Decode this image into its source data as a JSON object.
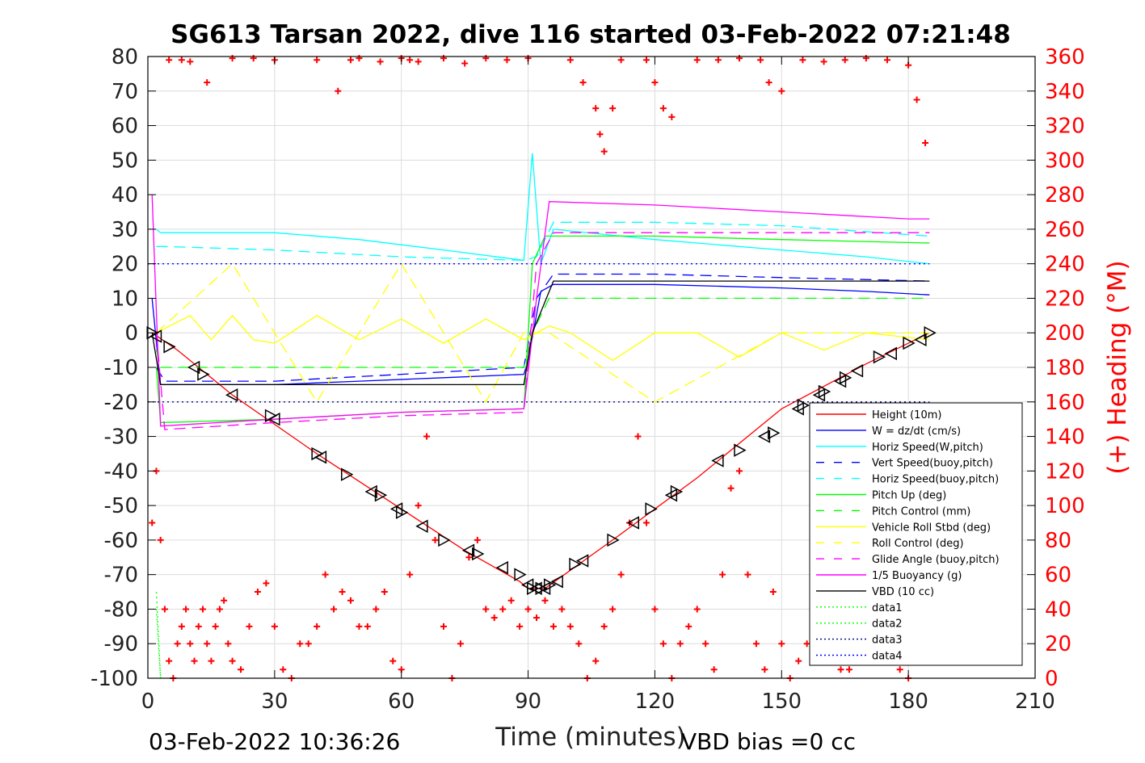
{
  "chart_data": {
    "type": "line",
    "title": "SG613 Tarsan 2022, dive 116 started 03-Feb-2022 07:21:48",
    "xlabel": "Time (minutes)",
    "ylabel": "",
    "ylabel_right": "(+) Heading (°M)",
    "footer_left": "03-Feb-2022 10:36:26",
    "footer_right": "VBD bias =0 cc",
    "xlim": [
      0,
      210
    ],
    "ylim": [
      -100,
      80
    ],
    "ylim_right": [
      0,
      360
    ],
    "x_ticks": [
      "0",
      "30",
      "60",
      "90",
      "120",
      "150",
      "180",
      "210"
    ],
    "y_ticks": [
      "80",
      "70",
      "60",
      "50",
      "40",
      "30",
      "20",
      "10",
      "0",
      "-10",
      "-20",
      "-30",
      "-40",
      "-50",
      "-60",
      "-70",
      "-80",
      "-90",
      "-100"
    ],
    "y_ticks_right": [
      "360",
      "340",
      "320",
      "300",
      "280",
      "260",
      "240",
      "220",
      "200",
      "180",
      "160",
      "140",
      "120",
      "100",
      "80",
      "60",
      "40",
      "20",
      "0"
    ],
    "grid": true,
    "legend_position": "lower-right",
    "series": [
      {
        "name": "Height (10m)",
        "color": "#ff0000",
        "style": "solid",
        "x": [
          1,
          7,
          20,
          40,
          60,
          75,
          88,
          90,
          94,
          110,
          130,
          150,
          170,
          185
        ],
        "y": [
          0,
          -5,
          -18,
          -35,
          -51,
          -63,
          -72,
          -74,
          -74,
          -60,
          -42,
          -22,
          -9,
          0
        ]
      },
      {
        "name": "W = dz/dt (cm/s)",
        "color": "#0000ff",
        "style": "solid",
        "x": [
          1,
          3,
          10,
          30,
          50,
          70,
          89,
          90,
          93,
          96,
          120,
          150,
          170,
          185
        ],
        "y": [
          10,
          -15,
          -15,
          -15,
          -14,
          -13,
          -12,
          -8,
          12,
          14,
          14,
          13,
          12,
          11
        ]
      },
      {
        "name": "Horiz Speed(W,pitch)",
        "color": "#00ffff",
        "style": "solid",
        "x": [
          2,
          3,
          10,
          30,
          50,
          70,
          89,
          91,
          93,
          96,
          120,
          150,
          170,
          185
        ],
        "y": [
          30,
          29,
          29,
          29,
          27,
          24,
          21,
          52,
          20,
          30,
          27,
          24,
          22,
          20
        ]
      },
      {
        "name": "Vert Speed(buoy,pitch)",
        "color": "#0000ff",
        "style": "dashed",
        "x": [
          2,
          4,
          30,
          60,
          89,
          92,
          96,
          120,
          150,
          185
        ],
        "y": [
          -10,
          -14,
          -14,
          -12,
          -10,
          10,
          17,
          17,
          16,
          15
        ]
      },
      {
        "name": "Horiz Speed(buoy,pitch)",
        "color": "#00ffff",
        "style": "dashed",
        "x": [
          2,
          4,
          30,
          60,
          89,
          92,
          96,
          120,
          150,
          185
        ],
        "y": [
          25,
          25,
          24,
          22,
          21,
          22,
          32,
          32,
          31,
          28
        ]
      },
      {
        "name": "Pitch Up (deg)",
        "color": "#00ff00",
        "style": "solid",
        "x": [
          2,
          3,
          30,
          60,
          89,
          91,
          94,
          120,
          150,
          185
        ],
        "y": [
          -10,
          -26,
          -25,
          -23,
          -22,
          20,
          28,
          28,
          27,
          26
        ]
      },
      {
        "name": "Pitch Control (mm)",
        "color": "#00ff00",
        "style": "dashed",
        "x": [
          2,
          3,
          89,
          91,
          95,
          185
        ],
        "y": [
          -5,
          -10,
          -10,
          0,
          10,
          10
        ]
      },
      {
        "name": "Vehicle Roll Stbd (deg)",
        "color": "#ffff00",
        "style": "solid",
        "x": [
          2,
          10,
          15,
          20,
          25,
          30,
          40,
          50,
          60,
          70,
          80,
          89,
          95,
          100,
          110,
          120,
          130,
          140,
          150,
          160,
          170,
          185
        ],
        "y": [
          0,
          5,
          -2,
          5,
          -2,
          -3,
          5,
          -2,
          4,
          -3,
          4,
          -2,
          2,
          0,
          -8,
          0,
          0,
          -7,
          0,
          -5,
          0,
          -2
        ]
      },
      {
        "name": "Roll Control (deg)",
        "color": "#ffff00",
        "style": "dashed",
        "x": [
          2,
          20,
          40,
          60,
          80,
          89,
          95,
          120,
          150,
          185
        ],
        "y": [
          0,
          20,
          -20,
          20,
          -20,
          0,
          0,
          -20,
          0,
          0
        ]
      },
      {
        "name": "Glide Angle (buoy,pitch)",
        "color": "#ff00ff",
        "style": "dashed",
        "x": [
          2,
          4,
          30,
          60,
          89,
          92,
          96,
          120,
          150,
          185
        ],
        "y": [
          0,
          -28,
          -26,
          -24,
          -23,
          20,
          29,
          29,
          29,
          29
        ]
      },
      {
        "name": "1/5 Buoyancy (g)",
        "color": "#ff00ff",
        "style": "solid",
        "x": [
          1,
          3,
          30,
          60,
          89,
          92,
          95,
          120,
          150,
          180,
          185
        ],
        "y": [
          40,
          -27,
          -25,
          -23,
          -22,
          10,
          38,
          37,
          35,
          33,
          33
        ]
      },
      {
        "name": "VBD (10 cc)",
        "color": "#000000",
        "style": "solid",
        "x": [
          1,
          3,
          30,
          60,
          89,
          91,
          96,
          120,
          150,
          185
        ],
        "y": [
          0,
          -15,
          -15,
          -15,
          -15,
          0,
          15,
          15,
          15,
          15
        ]
      },
      {
        "name": "data1",
        "color": "#00ff00",
        "style": "dotted",
        "x": [
          2,
          3
        ],
        "y": [
          -75,
          -100
        ]
      },
      {
        "name": "data2",
        "color": "#00ff00",
        "style": "dotted",
        "x": [
          2,
          3
        ],
        "y": [
          -80,
          -100
        ]
      },
      {
        "name": "data3",
        "color": "#000080",
        "style": "dotted",
        "x": [
          0,
          185
        ],
        "y": [
          -20,
          -20
        ]
      },
      {
        "name": "data4",
        "color": "#0000ff",
        "style": "dotted",
        "x": [
          0,
          89,
          90,
          185
        ],
        "y": [
          20,
          20,
          20,
          20
        ]
      }
    ],
    "heading": {
      "axis": "right",
      "color": "#ff0000",
      "marker": "+",
      "x": [
        1,
        2,
        3,
        4,
        5,
        6,
        7,
        8,
        9,
        10,
        11,
        12,
        13,
        14,
        15,
        16,
        17,
        18,
        19,
        20,
        22,
        24,
        26,
        28,
        30,
        32,
        34,
        36,
        38,
        40,
        42,
        44,
        46,
        48,
        50,
        52,
        54,
        56,
        58,
        60,
        62,
        64,
        66,
        68,
        70,
        72,
        74,
        76,
        78,
        80,
        82,
        84,
        86,
        88,
        90,
        92,
        94,
        96,
        98,
        100,
        102,
        104,
        106,
        108,
        110,
        112,
        114,
        116,
        118,
        120,
        122,
        124,
        126,
        128,
        130,
        132,
        134,
        136,
        138,
        140,
        142,
        144,
        146,
        148,
        150,
        152,
        154,
        156,
        158,
        160,
        162,
        164,
        166,
        168,
        170,
        172,
        174,
        176,
        178,
        180,
        182,
        184
      ],
      "y": [
        90,
        120,
        80,
        40,
        10,
        0,
        20,
        30,
        40,
        20,
        10,
        30,
        40,
        20,
        10,
        30,
        40,
        45,
        20,
        10,
        5,
        30,
        50,
        55,
        30,
        5,
        0,
        20,
        20,
        30,
        60,
        40,
        50,
        45,
        30,
        30,
        40,
        50,
        10,
        5,
        60,
        100,
        140,
        80,
        30,
        0,
        20,
        70,
        80,
        40,
        35,
        40,
        45,
        30,
        40,
        35,
        45,
        30,
        40,
        30,
        20,
        0,
        10,
        30,
        40,
        60,
        90,
        140,
        90,
        40,
        20,
        0,
        20,
        30,
        40,
        20,
        5,
        60,
        110,
        120,
        60,
        20,
        5,
        50,
        20,
        0,
        10,
        20,
        40,
        30,
        15,
        5,
        5,
        30,
        40,
        50,
        60,
        20,
        5,
        0,
        10,
        20
      ]
    },
    "heading_top": {
      "axis": "right",
      "color": "#ff0000",
      "marker": "+",
      "x": [
        5,
        8,
        10,
        14,
        20,
        25,
        30,
        40,
        45,
        48,
        50,
        55,
        60,
        62,
        64,
        70,
        75,
        80,
        85,
        90,
        100,
        103,
        106,
        107,
        108,
        110,
        112,
        118,
        120,
        122,
        124,
        130,
        135,
        140,
        145,
        147,
        150,
        155,
        160,
        165,
        170,
        175,
        180,
        182,
        184
      ],
      "y": [
        358,
        358,
        357,
        345,
        359,
        359,
        358,
        358,
        340,
        358,
        359,
        357,
        359,
        358,
        357,
        359,
        356,
        359,
        358,
        359,
        358,
        345,
        330,
        315,
        305,
        330,
        358,
        358,
        345,
        330,
        325,
        358,
        358,
        359,
        358,
        345,
        340,
        358,
        357,
        358,
        359,
        358,
        355,
        335,
        310
      ]
    },
    "position_markers": {
      "color": "#000000",
      "marker": "triangle",
      "x": [
        1,
        2,
        5,
        11,
        13,
        20,
        29,
        30,
        40,
        41,
        47,
        53,
        55,
        59,
        60,
        65,
        70,
        76,
        78,
        84,
        88,
        90,
        91,
        92,
        93,
        94,
        95,
        97,
        101,
        103,
        110,
        115,
        119,
        124,
        125,
        135,
        140,
        146,
        148,
        154,
        155,
        159,
        160,
        164,
        165,
        168,
        173,
        176,
        180,
        183,
        185
      ],
      "y": [
        0,
        -1,
        -4,
        -10,
        -12,
        -18,
        -24,
        -25,
        -35,
        -36,
        -41,
        -46,
        -47,
        -51,
        -52,
        -56,
        -60,
        -63,
        -64,
        -68,
        -70,
        -73,
        -74,
        -74,
        -74,
        -74,
        -73,
        -72,
        -67,
        -66,
        -60,
        -55,
        -51,
        -47,
        -46,
        -37,
        -34,
        -30,
        -29,
        -22,
        -21,
        -18,
        -17,
        -14,
        -13,
        -11,
        -7,
        -6,
        -3,
        -2,
        0
      ]
    }
  }
}
